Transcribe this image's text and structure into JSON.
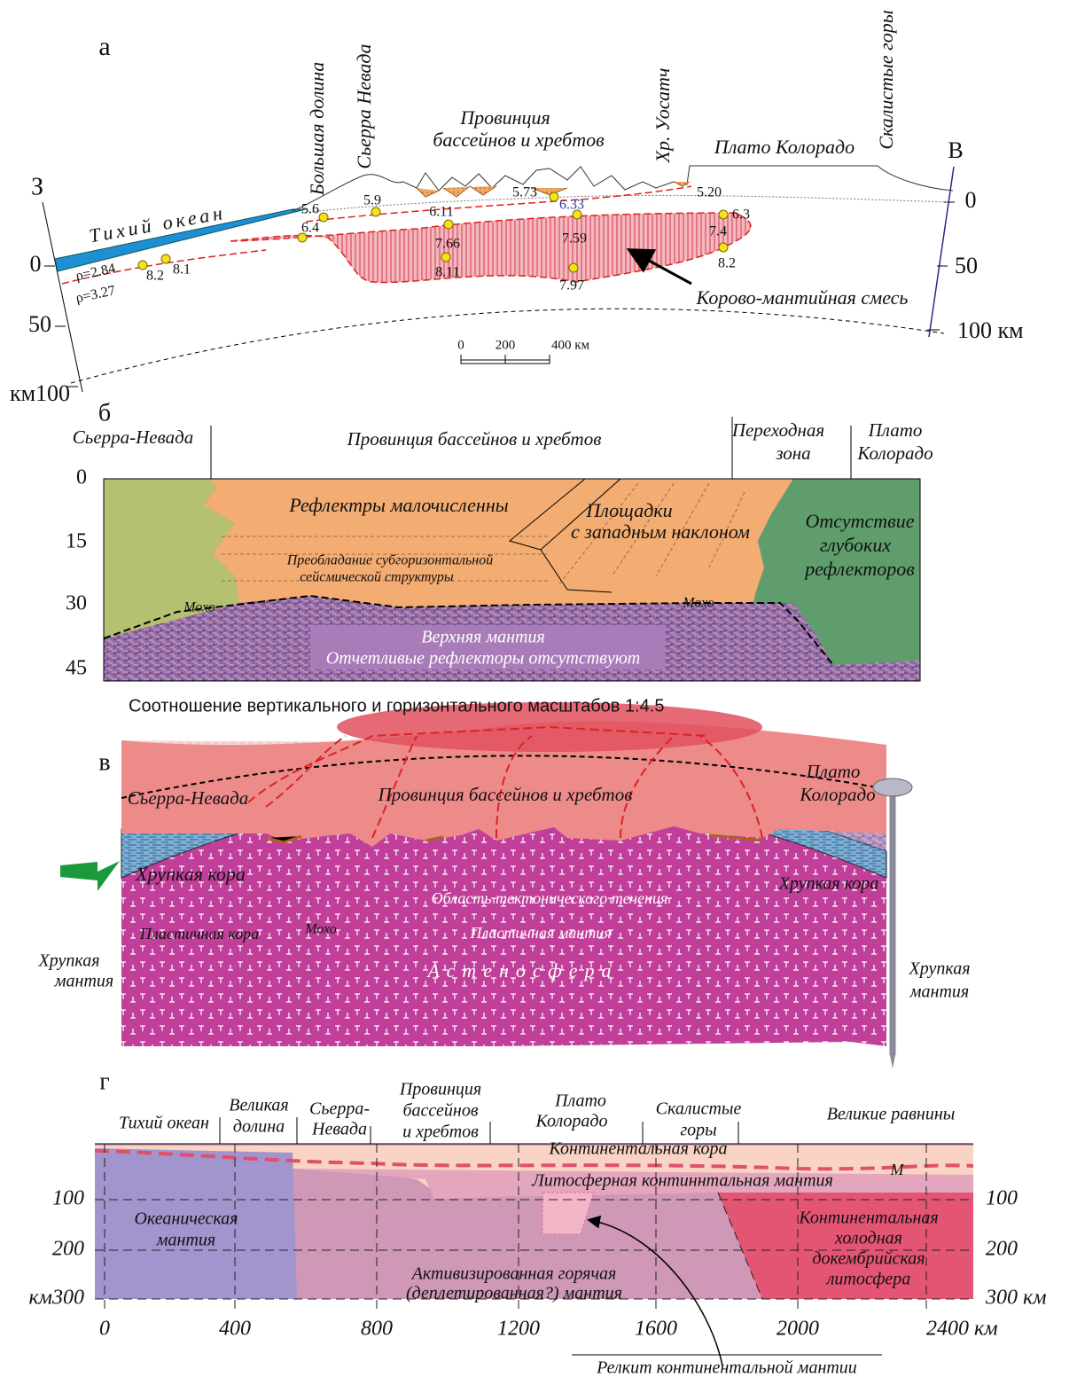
{
  "panel_a": {
    "label": "а",
    "west": "З",
    "east": "В",
    "ocean": "Тихий океан",
    "regions": [
      "Большая долина",
      "Сьерра Невада",
      "Хр. Уосатч",
      "Плато Колорадо",
      "Скалистые горы"
    ],
    "province": [
      "Провинция",
      "бассейнов и хребтов"
    ],
    "velocities": [
      "5.6",
      "6.4",
      "5.9",
      "6.11",
      "5.73",
      "6.33",
      "5.20",
      "6.3",
      "7.4",
      "7.66",
      "7.59",
      "8.2",
      "8.11",
      "7.97",
      "8.2",
      "8.1"
    ],
    "densities": [
      "ρ=2.84",
      "ρ=3.27"
    ],
    "mix_label": "Корово-мантийная смесь",
    "left_axis": [
      "0",
      "50",
      "км100"
    ],
    "right_axis": [
      "0",
      "50",
      "100 км"
    ],
    "scale": [
      "0",
      "200",
      "400 км"
    ]
  },
  "panel_b": {
    "label": "б",
    "sierra": "Сьерра-Невада",
    "province": "Провинция бассейнов и хребтов",
    "transition": [
      "Переходная",
      "зона"
    ],
    "plateau": [
      "Плато",
      "Колорадо"
    ],
    "depth_ticks": [
      "0",
      "15",
      "30",
      "45"
    ],
    "few_reflectors": "Рефлектры малочисленны",
    "platforms": [
      "Площадки",
      "с западным наклоном"
    ],
    "no_reflectors": [
      "Отсутствие",
      "глубоких",
      "рефлекторов"
    ],
    "subhorizontal": [
      "Преобладание субгоризонтальной",
      "сейсмической структуры"
    ],
    "moho": [
      "Мохо",
      "Мохо"
    ],
    "mantle": [
      "Верхняя мантия",
      "Отчетливые рефлекторы отсутствуют"
    ],
    "caption": "Соотношение вертикального и горизонтального масштабов 1:4.5"
  },
  "panel_v": {
    "label": "в",
    "sierra": "Сьерра-Невада",
    "province": "Провинция бассейнов и хребтов",
    "plateau": [
      "Плато",
      "Колорадо"
    ],
    "brittle_crust": [
      "Хрупкая кора",
      "Хрупкая кора"
    ],
    "flow": "Область тектонического течения",
    "plastic_crust": "Пластичная кора",
    "moho": "Мохо",
    "plastic_mantle": "Пластичная мантия",
    "brittle_mantle_left": [
      "Хрупкая",
      "мантия"
    ],
    "brittle_mantle_right": [
      "Хрупкая",
      "мантия"
    ],
    "asthenosphere": "Астеносфера"
  },
  "panel_g": {
    "label": "г",
    "ocean": "Тихий океан",
    "valley": [
      "Великая",
      "долина"
    ],
    "sierra": [
      "Сьерра-",
      "Невада"
    ],
    "province": [
      "Провинция",
      "бассейнов",
      "и хребтов"
    ],
    "plateau": [
      "Плато",
      "Колорадо"
    ],
    "rockies": [
      "Скалистые",
      "горы"
    ],
    "plains": "Великие равнины",
    "crust": "Континентальная кора",
    "m": "М",
    "lith_mantle": "Литосферная континнтальная мантия",
    "oceanic": [
      "Океаническая",
      "мантия"
    ],
    "active": [
      "Активизированная горячая",
      "(деплетированная?) мантия"
    ],
    "cold": [
      "Континентальная",
      "холодная",
      "докембрийская",
      "литосфера"
    ],
    "left_axis": [
      "100",
      "200",
      "км300"
    ],
    "right_axis": [
      "100",
      "200",
      "300 км"
    ],
    "x_axis": [
      "0",
      "400",
      "800",
      "1200",
      "1600",
      "2000",
      "2400 км"
    ],
    "relic": "Релкит континентальной мантии"
  }
}
